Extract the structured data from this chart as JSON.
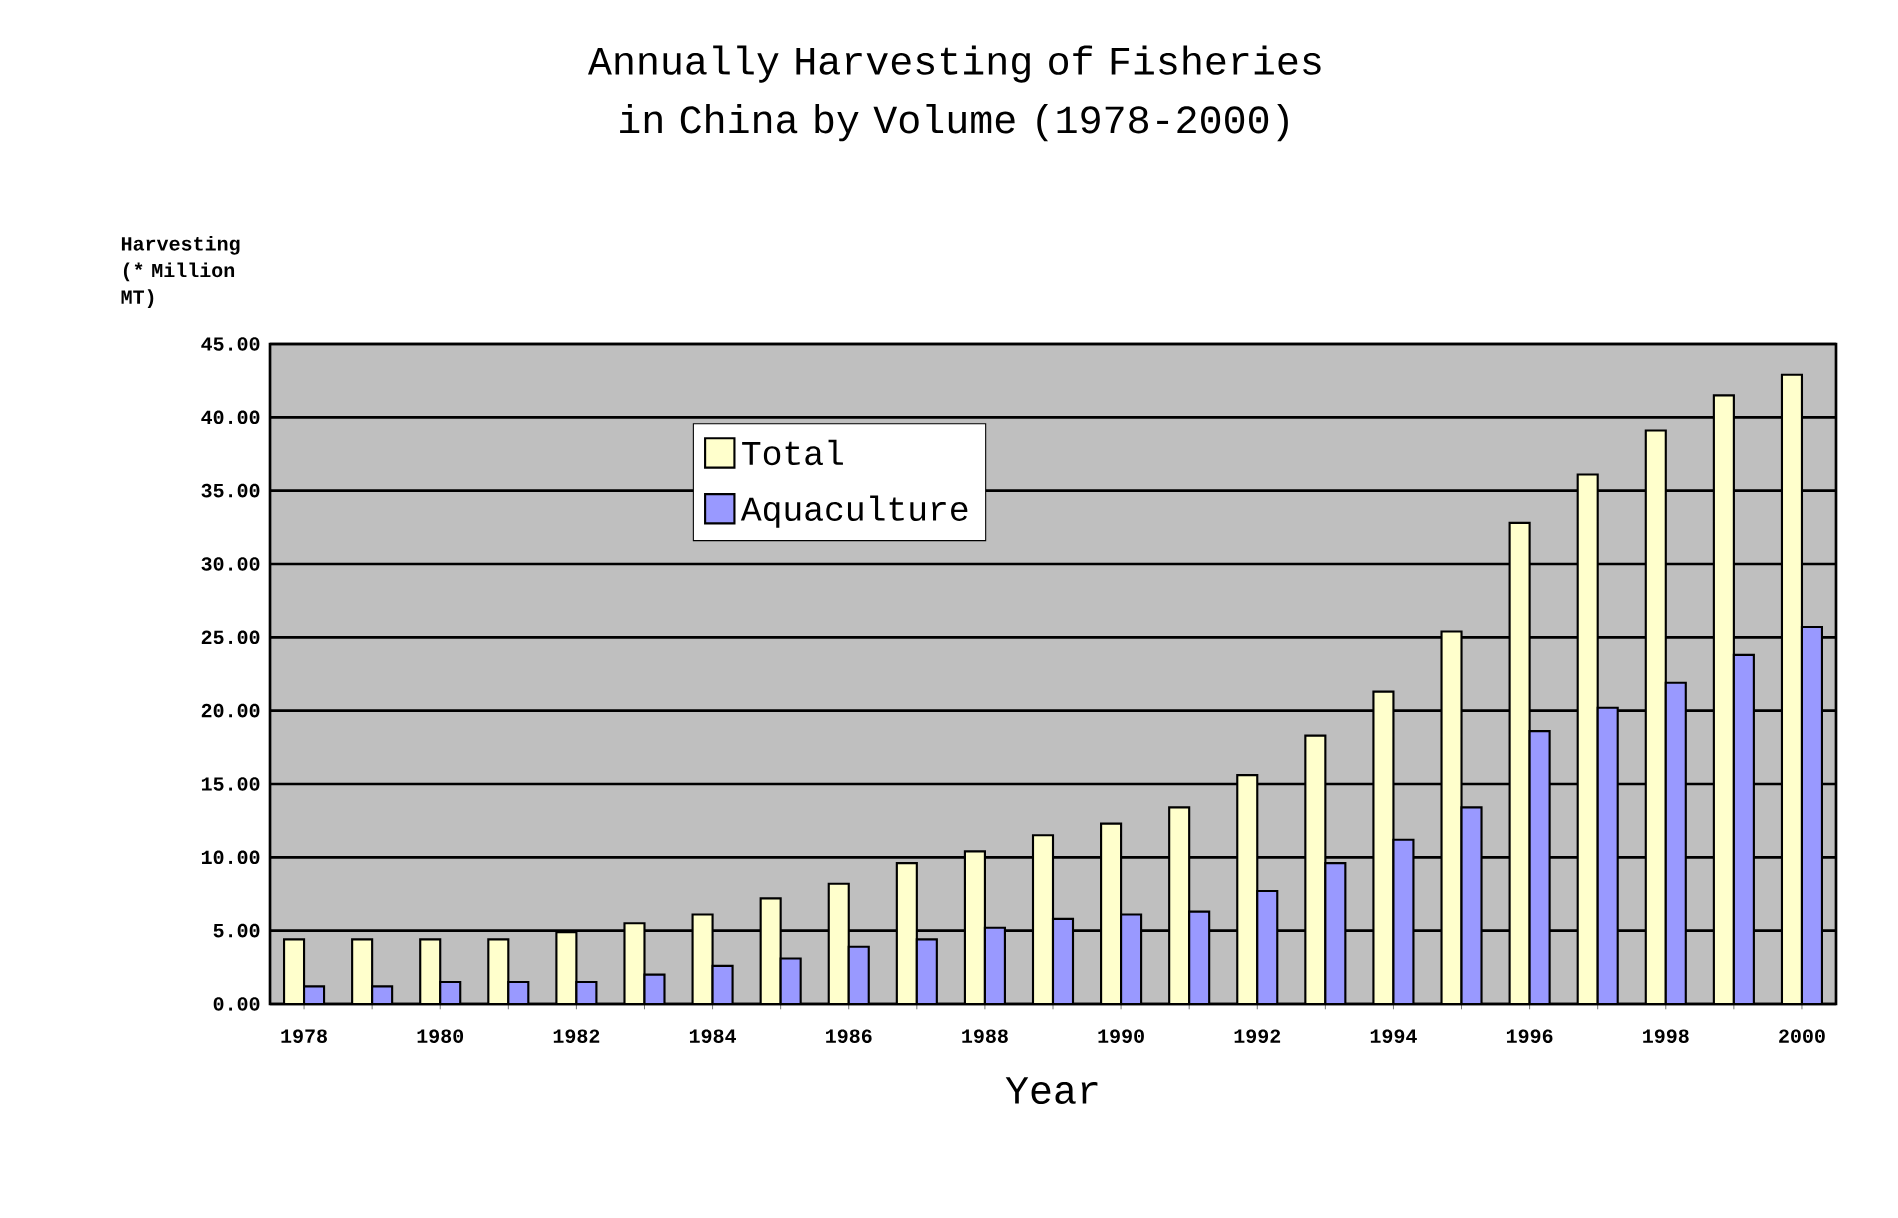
{
  "chart_data": {
    "type": "bar",
    "title": "Annually Harvesting of Fisheries in China by Volume (1978-2000)",
    "xlabel": "Year",
    "ylabel": "Harvesting (* Million MT)",
    "categories": [
      "1978",
      null,
      "1980",
      null,
      "1982",
      null,
      "1984",
      null,
      "1986",
      null,
      "1988",
      null,
      "1990",
      null,
      "1992",
      null,
      "1994",
      null,
      "1996",
      null,
      "1998",
      null,
      "2000"
    ],
    "series": [
      {
        "name": "Total",
        "color": "#ffffcc",
        "values": [
          4.4,
          4.4,
          4.4,
          4.4,
          4.9,
          5.5,
          6.1,
          7.2,
          8.2,
          9.6,
          10.4,
          11.5,
          12.3,
          13.4,
          15.6,
          18.3,
          21.3,
          25.4,
          32.8,
          36.1,
          39.1,
          41.5,
          42.9
        ]
      },
      {
        "name": "Aquaculture",
        "color": "#9999ff",
        "values": [
          1.2,
          1.2,
          1.5,
          1.5,
          1.5,
          2.0,
          2.6,
          3.1,
          3.9,
          4.4,
          5.2,
          5.8,
          6.1,
          6.3,
          7.7,
          9.6,
          11.2,
          13.4,
          18.6,
          20.2,
          21.9,
          23.8,
          25.7
        ]
      }
    ],
    "ylim": [
      0,
      45
    ],
    "yticks": [
      {
        "value": 0,
        "label": "0.00"
      },
      {
        "value": 5,
        "label": "5.00"
      },
      {
        "value": 10,
        "label": "10.00"
      },
      {
        "value": 15,
        "label": "15.00"
      },
      {
        "value": 20,
        "label": "20.00"
      },
      {
        "value": 25,
        "label": "25.00"
      },
      {
        "value": 30,
        "label": "30.00"
      },
      {
        "value": 35,
        "label": "35.00"
      },
      {
        "value": 40,
        "label": "40.00"
      },
      {
        "value": 45,
        "label": "45.00"
      }
    ],
    "grid": "y",
    "legend": "top"
  }
}
